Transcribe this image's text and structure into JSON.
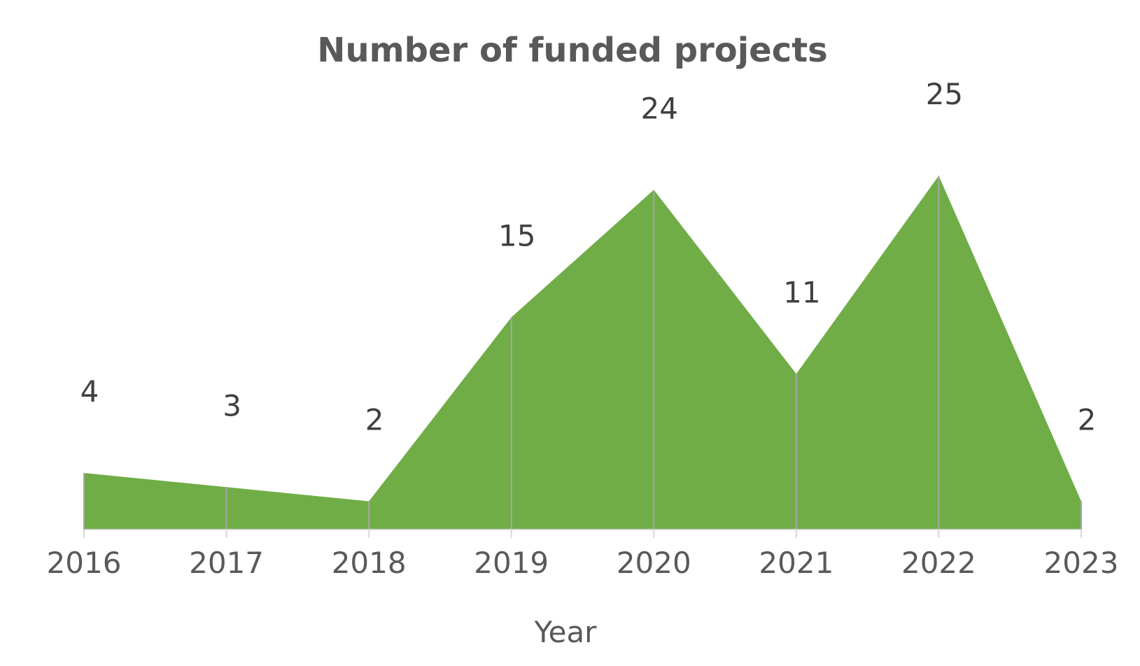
{
  "chart_data": {
    "type": "area",
    "title": "Number of funded projects",
    "xlabel": "Year",
    "ylabel": "",
    "categories": [
      "2016",
      "2017",
      "2018",
      "2019",
      "2020",
      "2021",
      "2022",
      "2023"
    ],
    "values": [
      4,
      3,
      2,
      15,
      24,
      11,
      25,
      2
    ],
    "ylim": [
      0,
      30
    ],
    "grid": false,
    "legend": "none",
    "colors": {
      "fill": "#70AD47",
      "drop_lines": "#A6A6A6",
      "axis": "#D9D9D9",
      "text": "#595959"
    }
  }
}
